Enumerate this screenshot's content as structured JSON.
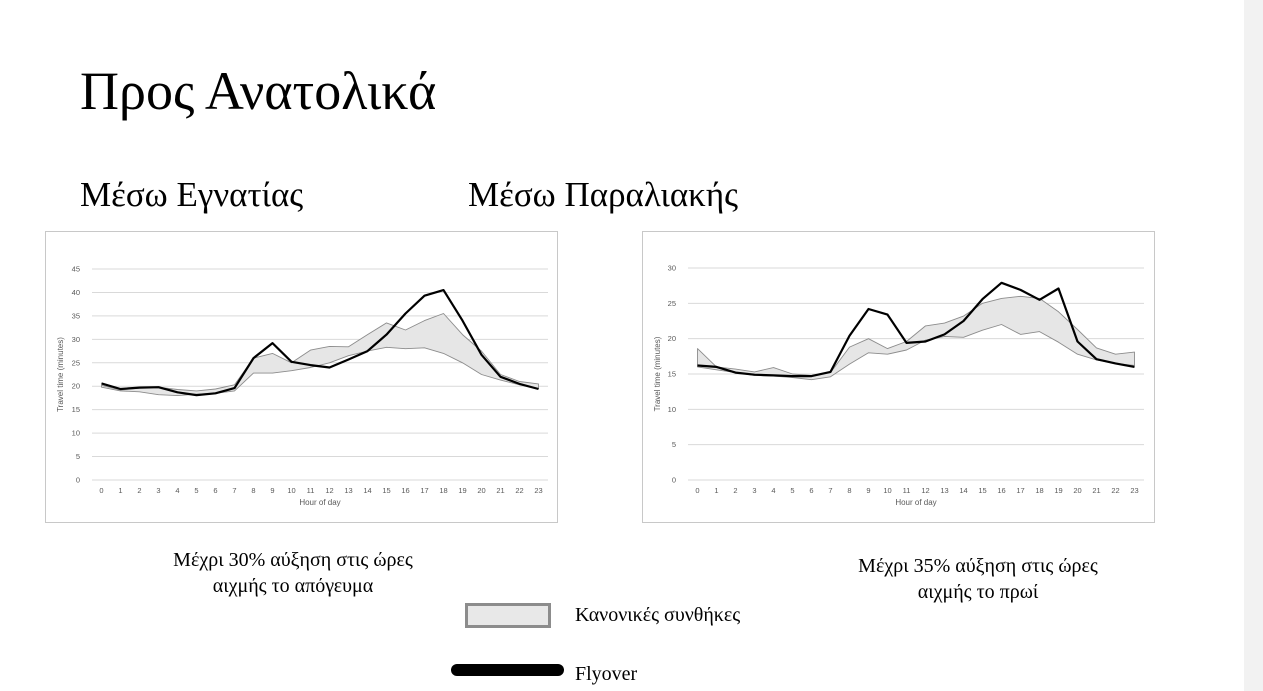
{
  "title": "Προς Ανατολικά",
  "panels": [
    {
      "subtitle": "Μέσω Εγνατίας",
      "caption_line1": "Μέχρι 30% αύξηση στις ώρες",
      "caption_line2": "αιχμής το απόγευμα"
    },
    {
      "subtitle": "Μέσω Παραλιακής",
      "caption_line1": "Μέχρι 35% αύξηση στις ώρες",
      "caption_line2": "αιχμής το πρωί"
    }
  ],
  "legend": {
    "normal_label": "Κανονικές συνθήκες",
    "flyover_label": "Flyover"
  },
  "colors": {
    "band_fill": "#e6e6e6",
    "band_stroke": "#8c8c8c",
    "flyover_line": "#000000",
    "grid": "#d9d9d9"
  },
  "chart_data": [
    {
      "type": "area",
      "xlabel": "Hour of day",
      "ylabel": "Travel time (minutes)",
      "x": [
        0,
        1,
        2,
        3,
        4,
        5,
        6,
        7,
        8,
        9,
        10,
        11,
        12,
        13,
        14,
        15,
        16,
        17,
        18,
        19,
        20,
        21,
        22,
        23
      ],
      "ylim": [
        0,
        45
      ],
      "yticks": [
        0,
        5,
        10,
        15,
        20,
        25,
        30,
        35,
        40,
        45
      ],
      "grid": true,
      "series": [
        {
          "name": "Κανονικές συνθήκες (upper)",
          "values": [
            20.2,
            19.2,
            19.6,
            19.8,
            19.3,
            19.0,
            19.4,
            20.3,
            26.0,
            27.0,
            25.0,
            27.7,
            28.5,
            28.4,
            31.0,
            33.5,
            32.0,
            34.0,
            35.5,
            31.0,
            27.5,
            22.5,
            21.0,
            20.5
          ]
        },
        {
          "name": "Κανονικές συνθήκες (lower)",
          "values": [
            19.8,
            19.0,
            18.8,
            18.2,
            18.0,
            18.3,
            18.5,
            19.0,
            22.8,
            22.8,
            23.3,
            24.0,
            25.0,
            26.5,
            27.5,
            28.3,
            28.0,
            28.2,
            27.0,
            25.0,
            22.5,
            21.3,
            20.3,
            19.5
          ]
        },
        {
          "name": "Flyover",
          "values": [
            20.6,
            19.4,
            19.7,
            19.8,
            18.7,
            18.1,
            18.5,
            19.6,
            26.0,
            29.2,
            25.2,
            24.5,
            24.0,
            25.7,
            27.5,
            31.0,
            35.5,
            39.3,
            40.5,
            34.0,
            26.7,
            22.0,
            20.5,
            19.4
          ]
        }
      ]
    },
    {
      "type": "area",
      "xlabel": "Hour of day",
      "ylabel": "Travel time (minutes)",
      "x": [
        0,
        1,
        2,
        3,
        4,
        5,
        6,
        7,
        8,
        9,
        10,
        11,
        12,
        13,
        14,
        15,
        16,
        17,
        18,
        19,
        20,
        21,
        22,
        23
      ],
      "ylim": [
        0,
        30
      ],
      "yticks": [
        0,
        5,
        10,
        15,
        20,
        25,
        30
      ],
      "grid": true,
      "series": [
        {
          "name": "Κανονικές συνθήκες (upper)",
          "values": [
            18.6,
            16.0,
            15.7,
            15.3,
            15.9,
            15.0,
            14.8,
            15.2,
            18.8,
            20.0,
            18.6,
            19.6,
            21.8,
            22.2,
            23.2,
            25.0,
            25.7,
            26.0,
            25.7,
            23.8,
            21.3,
            18.7,
            17.8,
            18.1
          ]
        },
        {
          "name": "Κανονικές συνθήκες (lower)",
          "values": [
            16.0,
            15.6,
            15.2,
            14.8,
            14.7,
            14.5,
            14.2,
            14.6,
            16.4,
            18.0,
            17.8,
            18.4,
            19.8,
            20.3,
            20.2,
            21.2,
            22.0,
            20.6,
            21.0,
            19.5,
            17.8,
            17.0,
            16.5,
            16.2
          ]
        },
        {
          "name": "Flyover",
          "values": [
            16.2,
            16.0,
            15.2,
            14.9,
            14.8,
            14.7,
            14.7,
            15.3,
            20.4,
            24.2,
            23.4,
            19.4,
            19.6,
            20.6,
            22.5,
            25.6,
            27.9,
            26.9,
            25.5,
            27.1,
            19.6,
            17.1,
            16.5,
            16.0
          ]
        }
      ]
    }
  ]
}
